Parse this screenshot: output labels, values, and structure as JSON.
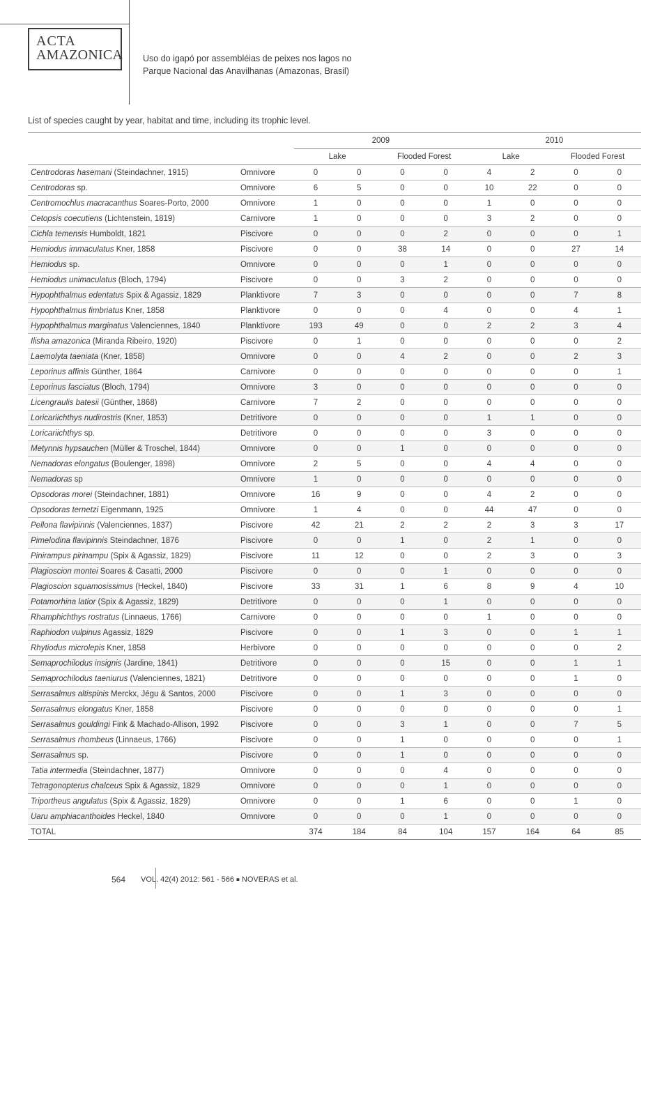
{
  "header": {
    "logo_line1": "ACTA",
    "logo_line2": "AMAZONICA",
    "article_title_line1": "Uso do igapó por assembléias de peixes nos lagos no",
    "article_title_line2": "Parque Nacional das Anavilhanas (Amazonas, Brasil)"
  },
  "table": {
    "caption": "List of species caught by year, habitat and time, including its trophic level.",
    "years": [
      "2009",
      "2010"
    ],
    "habitats": [
      "Lake",
      "Flooded Forest"
    ],
    "colors": {
      "text": "#3a3a3a",
      "rule": "#888888",
      "row_rule": "#bbbbbb",
      "shade": "#f4f4f4",
      "background": "#ffffff"
    },
    "fontsize_pt": 9,
    "rows": [
      {
        "species": "Centrodoras hasemani",
        "auth": " (Steindachner, 1915)",
        "trophic": "Omnivore",
        "v": [
          0,
          0,
          0,
          0,
          4,
          2,
          0,
          0
        ],
        "shade": false
      },
      {
        "species": "Centrodoras",
        "auth": " sp.",
        "trophic": "Omnivore",
        "v": [
          6,
          5,
          0,
          0,
          10,
          22,
          0,
          0
        ],
        "shade": false
      },
      {
        "species": "Centromochlus macracanthus",
        "auth": " Soares-Porto, 2000",
        "trophic": "Omnivore",
        "v": [
          1,
          0,
          0,
          0,
          1,
          0,
          0,
          0
        ],
        "shade": false
      },
      {
        "species": "Cetopsis coecutiens",
        "auth": " (Lichtenstein, 1819)",
        "trophic": "Carnivore",
        "v": [
          1,
          0,
          0,
          0,
          3,
          2,
          0,
          0
        ],
        "shade": false
      },
      {
        "species": "Cichla temensis",
        "auth": " Humboldt, 1821",
        "trophic": "Piscivore",
        "v": [
          0,
          0,
          0,
          2,
          0,
          0,
          0,
          1
        ],
        "shade": true
      },
      {
        "species": "Hemiodus immaculatus",
        "auth": " Kner, 1858",
        "trophic": "Piscivore",
        "v": [
          0,
          0,
          38,
          14,
          0,
          0,
          27,
          14
        ],
        "shade": false
      },
      {
        "species": "Hemiodus",
        "auth": " sp.",
        "trophic": "Omnivore",
        "v": [
          0,
          0,
          0,
          1,
          0,
          0,
          0,
          0
        ],
        "shade": true
      },
      {
        "species": "Hemiodus unimaculatus",
        "auth": "  (Bloch, 1794)",
        "trophic": "Piscivore",
        "v": [
          0,
          0,
          3,
          2,
          0,
          0,
          0,
          0
        ],
        "shade": false
      },
      {
        "species": "Hypophthalmus edentatus",
        "auth": " Spix & Agassiz, 1829",
        "trophic": "Planktivore",
        "v": [
          7,
          3,
          0,
          0,
          0,
          0,
          7,
          8
        ],
        "shade": true
      },
      {
        "species": "Hypophthalmus fimbriatus",
        "auth": " Kner, 1858",
        "trophic": "Planktivore",
        "v": [
          0,
          0,
          0,
          4,
          0,
          0,
          4,
          1
        ],
        "shade": false
      },
      {
        "species": "Hypophthalmus marginatus",
        "auth": " Valenciennes, 1840",
        "trophic": "Planktivore",
        "v": [
          193,
          49,
          0,
          0,
          2,
          2,
          3,
          4
        ],
        "shade": true
      },
      {
        "species": "Ilisha amazonica",
        "auth": " (Miranda Ribeiro, 1920)",
        "trophic": "Piscivore",
        "v": [
          0,
          1,
          0,
          0,
          0,
          0,
          0,
          2
        ],
        "shade": false
      },
      {
        "species": "Laemolyta taeniata",
        "auth": " (Kner, 1858)",
        "trophic": "Omnivore",
        "v": [
          0,
          0,
          4,
          2,
          0,
          0,
          2,
          3
        ],
        "shade": true
      },
      {
        "species": "Leporinus affinis",
        "auth": " Günther, 1864",
        "trophic": "Carnivore",
        "v": [
          0,
          0,
          0,
          0,
          0,
          0,
          0,
          1
        ],
        "shade": false
      },
      {
        "species": "Leporinus fasciatus",
        "auth": " (Bloch, 1794)",
        "trophic": "Omnivore",
        "v": [
          3,
          0,
          0,
          0,
          0,
          0,
          0,
          0
        ],
        "shade": true
      },
      {
        "species": "Licengraulis batesii",
        "auth": " (Günther, 1868)",
        "trophic": "Carnivore",
        "v": [
          7,
          2,
          0,
          0,
          0,
          0,
          0,
          0
        ],
        "shade": false
      },
      {
        "species": "Loricariichthys nudirostris",
        "auth": " (Kner, 1853)",
        "trophic": "Detritivore",
        "v": [
          0,
          0,
          0,
          0,
          1,
          1,
          0,
          0
        ],
        "shade": true
      },
      {
        "species": "Loricariichthys",
        "auth": " sp.",
        "trophic": "Detritivore",
        "v": [
          0,
          0,
          0,
          0,
          3,
          0,
          0,
          0
        ],
        "shade": false
      },
      {
        "species": "Metynnis hypsauchen",
        "auth": " (Müller & Troschel, 1844)",
        "trophic": "Omnivore",
        "v": [
          0,
          0,
          1,
          0,
          0,
          0,
          0,
          0
        ],
        "shade": true
      },
      {
        "species": "Nemadoras elongatus",
        "auth": " (Boulenger, 1898)",
        "trophic": "Omnivore",
        "v": [
          2,
          5,
          0,
          0,
          4,
          4,
          0,
          0
        ],
        "shade": false
      },
      {
        "species": "Nemadoras",
        "auth": " sp",
        "trophic": "Omnivore",
        "v": [
          1,
          0,
          0,
          0,
          0,
          0,
          0,
          0
        ],
        "shade": true
      },
      {
        "species": "Opsodoras morei",
        "auth": " (Steindachner, 1881)",
        "trophic": "Omnivore",
        "v": [
          16,
          9,
          0,
          0,
          4,
          2,
          0,
          0
        ],
        "shade": false
      },
      {
        "species": "Opsodoras ternetzi",
        "auth": " Eigenmann, 1925",
        "trophic": "Omnivore",
        "v": [
          1,
          4,
          0,
          0,
          44,
          47,
          0,
          0
        ],
        "shade": false
      },
      {
        "species": "Pellona flavipinnis",
        "auth": " (Valenciennes, 1837)",
        "trophic": "Piscivore",
        "v": [
          42,
          21,
          2,
          2,
          2,
          3,
          3,
          17
        ],
        "shade": false
      },
      {
        "species": "Pimelodina flavipinnis",
        "auth": " Steindachner, 1876",
        "trophic": "Piscivore",
        "v": [
          0,
          0,
          1,
          0,
          2,
          1,
          0,
          0
        ],
        "shade": true
      },
      {
        "species": "Pinirampus pirinampu",
        "auth": " (Spix & Agassiz, 1829)",
        "trophic": "Piscivore",
        "v": [
          11,
          12,
          0,
          0,
          2,
          3,
          0,
          3
        ],
        "shade": false
      },
      {
        "species": "Plagioscion montei",
        "auth": " Soares & Casatti, 2000",
        "trophic": "Piscivore",
        "v": [
          0,
          0,
          0,
          1,
          0,
          0,
          0,
          0
        ],
        "shade": true
      },
      {
        "species": "Plagioscion squamosissimus",
        "auth": " (Heckel, 1840)",
        "trophic": "Piscivore",
        "v": [
          33,
          31,
          1,
          6,
          8,
          9,
          4,
          10
        ],
        "shade": false
      },
      {
        "species": "Potamorhina latior",
        "auth": " (Spix & Agassiz, 1829)",
        "trophic": "Detritivore",
        "v": [
          0,
          0,
          0,
          1,
          0,
          0,
          0,
          0
        ],
        "shade": true
      },
      {
        "species": "Rhamphichthys rostratus",
        "auth": " (Linnaeus, 1766)",
        "trophic": "Carnivore",
        "v": [
          0,
          0,
          0,
          0,
          1,
          0,
          0,
          0
        ],
        "shade": false
      },
      {
        "species": "Raphiodon vulpinus",
        "auth": " Agassiz, 1829",
        "trophic": "Piscivore",
        "v": [
          0,
          0,
          1,
          3,
          0,
          0,
          1,
          1
        ],
        "shade": true
      },
      {
        "species": "Rhytiodus microlepis",
        "auth": " Kner, 1858",
        "trophic": "Herbivore",
        "v": [
          0,
          0,
          0,
          0,
          0,
          0,
          0,
          2
        ],
        "shade": false
      },
      {
        "species": "Semaprochilodus insignis",
        "auth": " (Jardine, 1841)",
        "trophic": "Detritivore",
        "v": [
          0,
          0,
          0,
          15,
          0,
          0,
          1,
          1
        ],
        "shade": true
      },
      {
        "species": "Semaprochilodus taeniurus",
        "auth": " (Valenciennes, 1821)",
        "trophic": "Detritivore",
        "v": [
          0,
          0,
          0,
          0,
          0,
          0,
          1,
          0
        ],
        "shade": false
      },
      {
        "species": "Serrasalmus altispinis",
        "auth": " Merckx, Jégu & Santos, 2000",
        "trophic": "Piscivore",
        "v": [
          0,
          0,
          1,
          3,
          0,
          0,
          0,
          0
        ],
        "shade": true
      },
      {
        "species": "Serrasalmus elongatus",
        "auth": " Kner, 1858",
        "trophic": "Piscivore",
        "v": [
          0,
          0,
          0,
          0,
          0,
          0,
          0,
          1
        ],
        "shade": false
      },
      {
        "species": "Serrasalmus gouldingi",
        "auth": " Fink & Machado-Allison, 1992",
        "trophic": "Piscivore",
        "v": [
          0,
          0,
          3,
          1,
          0,
          0,
          7,
          5
        ],
        "shade": true
      },
      {
        "species": "Serrasalmus rhombeus",
        "auth": " (Linnaeus, 1766)",
        "trophic": "Piscivore",
        "v": [
          0,
          0,
          1,
          0,
          0,
          0,
          0,
          1
        ],
        "shade": false
      },
      {
        "species": "Serrasalmus",
        "auth": " sp.",
        "trophic": "Piscivore",
        "v": [
          0,
          0,
          1,
          0,
          0,
          0,
          0,
          0
        ],
        "shade": true
      },
      {
        "species": "Tatia intermedia",
        "auth": " (Steindachner, 1877)",
        "trophic": "Omnivore",
        "v": [
          0,
          0,
          0,
          4,
          0,
          0,
          0,
          0
        ],
        "shade": false
      },
      {
        "species": "Tetragonopterus chalceus",
        "auth": " Spix & Agassiz, 1829",
        "trophic": "Omnivore",
        "v": [
          0,
          0,
          0,
          1,
          0,
          0,
          0,
          0
        ],
        "shade": true
      },
      {
        "species": "Triportheus angulatus",
        "auth": " (Spix & Agassiz, 1829)",
        "trophic": "Omnivore",
        "v": [
          0,
          0,
          1,
          6,
          0,
          0,
          1,
          0
        ],
        "shade": false
      },
      {
        "species": "Uaru amphiacanthoides",
        "auth": " Heckel, 1840",
        "trophic": "Omnivore",
        "v": [
          0,
          0,
          0,
          1,
          0,
          0,
          0,
          0
        ],
        "shade": true
      }
    ],
    "total": {
      "label": "TOTAL",
      "v": [
        374,
        184,
        84,
        104,
        157,
        164,
        64,
        85
      ]
    }
  },
  "footer": {
    "page": "564",
    "vol": "VOL. 42(4) 2012: 561 - 566 ",
    "authors": " NOVERAS et al."
  }
}
